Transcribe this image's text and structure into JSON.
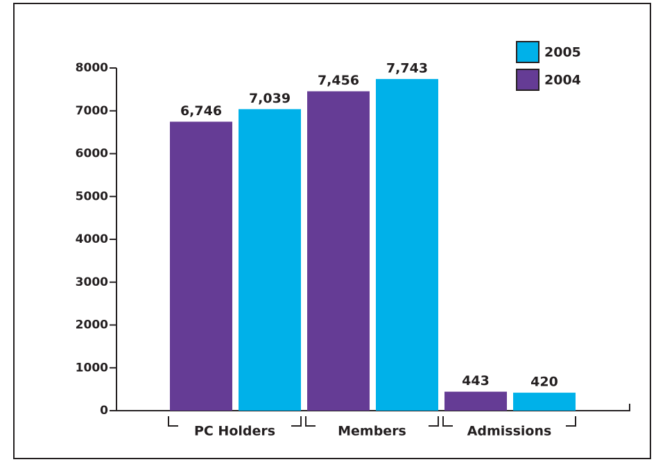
{
  "chart_data": {
    "type": "bar",
    "categories": [
      "PC Holders",
      "Members",
      "Admissions"
    ],
    "series": [
      {
        "name": "2004",
        "color": "#653c95",
        "values": [
          6746,
          7456,
          443
        ],
        "value_labels": [
          "6,746",
          "7,456",
          "443"
        ]
      },
      {
        "name": "2005",
        "color": "#00b1e9",
        "values": [
          7039,
          7743,
          420
        ],
        "value_labels": [
          "7,039",
          "7,743",
          "420"
        ]
      }
    ],
    "ylim": [
      0,
      8000
    ],
    "yticks": [
      0,
      1000,
      2000,
      3000,
      4000,
      5000,
      6000,
      7000,
      8000
    ],
    "legend": "top-right"
  }
}
